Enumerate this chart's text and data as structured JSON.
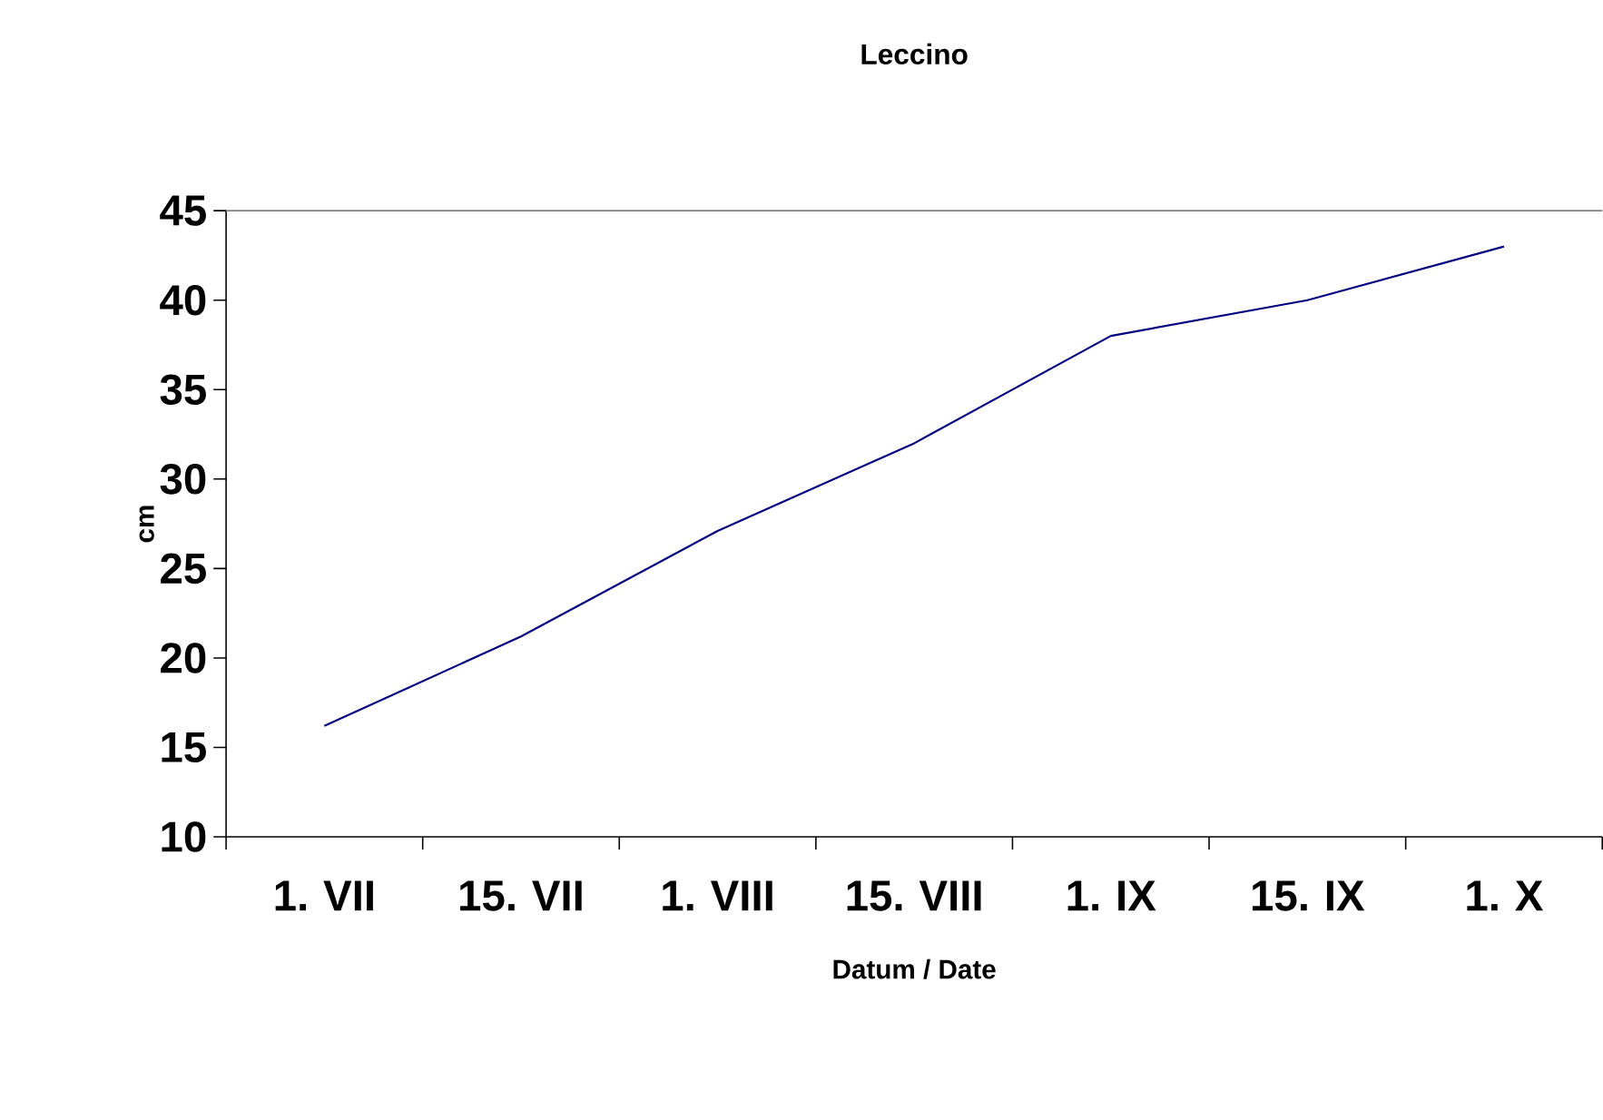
{
  "chart_data": {
    "type": "line",
    "title": "Leccino",
    "xlabel": "Datum / Date",
    "ylabel": "cm",
    "categories": [
      "1. VII",
      "15. VII",
      "1. VIII",
      "15. VIII",
      "1. IX",
      "15. IX",
      "1. X"
    ],
    "series": [
      {
        "color": "#000080",
        "values": [
          16.2,
          21.2,
          27.1,
          32,
          38,
          40,
          43
        ]
      }
    ],
    "ylim": [
      10,
      45
    ],
    "yticks": [
      10,
      15,
      20,
      25,
      30,
      35,
      40,
      45
    ],
    "grid": false,
    "marker": "none",
    "line_style": "solid"
  }
}
